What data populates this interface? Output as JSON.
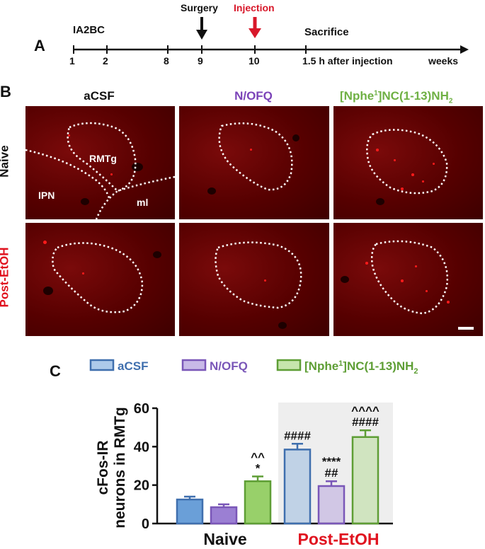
{
  "panelA": {
    "letter": "A",
    "protocol_label": "IA2BC",
    "surgery_label": "Surgery",
    "injection_label": "Injection",
    "sacrifice_label": "Sacrifice",
    "ticks": [
      "1",
      "2",
      "8",
      "9",
      "10"
    ],
    "after_label": "1.5 h after injection",
    "unit_label": "weeks",
    "injection_color": "#d8182a"
  },
  "panelB": {
    "letter": "B",
    "col_titles": {
      "acsf": "aCSF",
      "nofq": "N/OFQ",
      "nphe_base": "[Nphe",
      "nphe_sup": "1",
      "nphe_rest": "]NC(1-13)NH",
      "nphe_sub": "2"
    },
    "row_titles": {
      "naive": "Naive",
      "post": "Post-EtOH"
    },
    "region_labels": {
      "rmtg": "RMTg",
      "ipn": "IPN",
      "ml": "ml"
    },
    "colors": {
      "nofq": "#7b43b8",
      "nphe": "#6fb044",
      "post": "#e0121e"
    }
  },
  "panelC": {
    "letter": "C"
  },
  "chart_data": {
    "type": "bar",
    "ylabel_line1": "cFos-IR",
    "ylabel_line2": "neurons in RMTg",
    "ylim": [
      0,
      60
    ],
    "yticks": [
      0,
      20,
      40,
      60
    ],
    "groups": [
      "Naive",
      "Post-EtOH"
    ],
    "legend": [
      {
        "name": "aCSF",
        "color": "#6a9fd8",
        "edge": "#3f6fae"
      },
      {
        "name": "N/OFQ",
        "color": "#9b7fd3",
        "edge": "#7a57b8"
      },
      {
        "name_base": "[Nphe",
        "name_sup": "1",
        "name_rest": "]NC(1-13)NH",
        "name_sub": "2",
        "color": "#98d06a",
        "edge": "#5e9e35"
      }
    ],
    "series": [
      {
        "name": "aCSF",
        "values": [
          12.5,
          38.5
        ],
        "errors": [
          1.5,
          3.0
        ]
      },
      {
        "name": "N/OFQ",
        "values": [
          8.5,
          19.5
        ],
        "errors": [
          1.5,
          2.5
        ]
      },
      {
        "values": [
          22.0,
          45.0
        ],
        "errors": [
          2.5,
          3.5
        ]
      }
    ],
    "annotations": [
      {
        "group": 0,
        "series": 2,
        "lines": [
          "^^",
          "*"
        ]
      },
      {
        "group": 1,
        "series": 0,
        "lines": [
          "####"
        ]
      },
      {
        "group": 1,
        "series": 1,
        "lines": [
          "****",
          "##"
        ]
      },
      {
        "group": 1,
        "series": 2,
        "lines": [
          "^^^^",
          "####"
        ]
      }
    ],
    "group_label_colors": [
      "#111111",
      "#e0121e"
    ]
  }
}
